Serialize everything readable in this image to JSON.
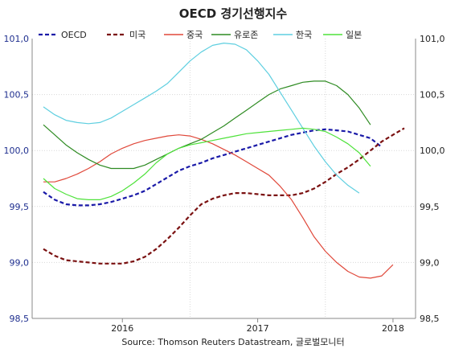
{
  "chart_data": {
    "type": "line",
    "title": "OECD 경기선행지수",
    "source": "Source: Thomson Reuters Datastream, 글로벌모니터",
    "xlabel": "",
    "ylabel": "",
    "ylim": [
      98.5,
      101.0
    ],
    "yticks_left": [
      "98,5",
      "99,0",
      "99,5",
      "100,0",
      "100,5",
      "101,0"
    ],
    "yticks_right": [
      "98,5",
      "99,0",
      "99,5",
      "100,0",
      "100,5",
      "101,0"
    ],
    "ytick_values": [
      98.5,
      99.0,
      99.5,
      100.0,
      100.5,
      101.0
    ],
    "xlim": [
      "2015-05",
      "2018-03"
    ],
    "x_tick_labels": [
      "2016",
      "2017",
      "2018"
    ],
    "x_tick_positions": [
      "2016-01",
      "2017-01",
      "2018-01"
    ],
    "x_grid": [
      "2016-07",
      "2017-07"
    ],
    "grid": true,
    "legend_position": "top",
    "x": [
      "2015-06",
      "2015-07",
      "2015-08",
      "2015-09",
      "2015-10",
      "2015-11",
      "2015-12",
      "2016-01",
      "2016-02",
      "2016-03",
      "2016-04",
      "2016-05",
      "2016-06",
      "2016-07",
      "2016-08",
      "2016-09",
      "2016-10",
      "2016-11",
      "2016-12",
      "2017-01",
      "2017-02",
      "2017-03",
      "2017-04",
      "2017-05",
      "2017-06",
      "2017-07",
      "2017-08",
      "2017-09",
      "2017-10",
      "2017-11",
      "2017-12",
      "2018-01",
      "2018-02"
    ],
    "series": [
      {
        "name": "OECD",
        "color": "#1a1aa8",
        "dash": "dash",
        "values": [
          99.63,
          99.56,
          99.52,
          99.51,
          99.51,
          99.52,
          99.54,
          99.57,
          99.6,
          99.64,
          99.7,
          99.76,
          99.82,
          99.86,
          99.89,
          99.93,
          99.96,
          99.99,
          100.02,
          100.05,
          100.08,
          100.11,
          100.14,
          100.16,
          100.18,
          100.19,
          100.18,
          100.17,
          100.14,
          100.11,
          100.03,
          null,
          null
        ]
      },
      {
        "name": "미국",
        "color": "#7a1010",
        "dash": "dash",
        "values": [
          99.12,
          99.06,
          99.02,
          99.01,
          99.0,
          98.99,
          98.99,
          98.99,
          99.01,
          99.05,
          99.12,
          99.21,
          99.31,
          99.42,
          99.52,
          99.57,
          99.6,
          99.62,
          99.62,
          99.61,
          99.6,
          99.6,
          99.6,
          99.62,
          99.66,
          99.72,
          99.79,
          99.85,
          99.92,
          100.0,
          100.08,
          100.14,
          100.2
        ]
      },
      {
        "name": "중국",
        "color": "#e0483a",
        "dash": "solid",
        "values": [
          99.72,
          99.72,
          99.75,
          99.79,
          99.84,
          99.9,
          99.97,
          100.02,
          100.06,
          100.09,
          100.11,
          100.13,
          100.14,
          100.13,
          100.1,
          100.06,
          100.01,
          99.96,
          99.9,
          99.84,
          99.78,
          99.68,
          99.56,
          99.4,
          99.23,
          99.1,
          99.0,
          98.92,
          98.87,
          98.86,
          98.88,
          98.98,
          null
        ]
      },
      {
        "name": "유로존",
        "color": "#2e8b22",
        "dash": "solid",
        "values": [
          100.23,
          100.14,
          100.05,
          99.98,
          99.92,
          99.87,
          99.84,
          99.84,
          99.84,
          99.87,
          99.92,
          99.97,
          100.02,
          100.06,
          100.1,
          100.16,
          100.22,
          100.29,
          100.36,
          100.43,
          100.5,
          100.55,
          100.58,
          100.61,
          100.62,
          100.62,
          100.58,
          100.5,
          100.38,
          100.23,
          null,
          null,
          null
        ]
      },
      {
        "name": "한국",
        "color": "#5fcfe0",
        "dash": "solid",
        "values": [
          100.39,
          100.32,
          100.27,
          100.25,
          100.24,
          100.25,
          100.29,
          100.35,
          100.41,
          100.47,
          100.53,
          100.6,
          100.7,
          100.8,
          100.88,
          100.94,
          100.96,
          100.95,
          100.9,
          100.8,
          100.68,
          100.52,
          100.36,
          100.2,
          100.04,
          99.9,
          99.78,
          99.69,
          99.62,
          null,
          null,
          null,
          null
        ]
      },
      {
        "name": "일본",
        "color": "#4ee23a",
        "dash": "solid",
        "values": [
          99.75,
          99.66,
          99.61,
          99.57,
          99.56,
          99.56,
          99.59,
          99.64,
          99.71,
          99.79,
          99.89,
          99.97,
          100.02,
          100.05,
          100.07,
          100.09,
          100.11,
          100.13,
          100.15,
          100.16,
          100.17,
          100.18,
          100.19,
          100.2,
          100.19,
          100.17,
          100.12,
          100.06,
          99.98,
          99.86,
          null,
          null,
          null
        ]
      }
    ]
  }
}
